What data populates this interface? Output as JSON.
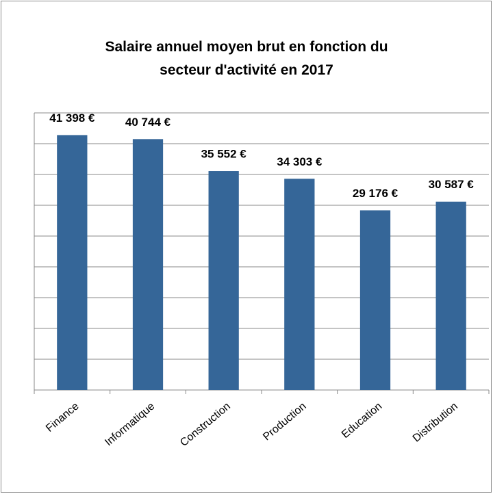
{
  "chart_data": {
    "type": "bar",
    "title": "Salaire annuel moyen brut en fonction du secteur d'activité en 2017",
    "categories": [
      "Finance",
      "Informatique",
      "Construction",
      "Production",
      "Education",
      "Distribution"
    ],
    "values": [
      41398,
      40744,
      35552,
      34303,
      29176,
      30587
    ],
    "value_labels": [
      "41 398 €",
      "40 744 €",
      "35 552 €",
      "34 303 €",
      "29 176 €",
      "30 587 €"
    ],
    "color": "#356698",
    "ylim": [
      0,
      45000
    ],
    "yticks": [
      0,
      5000,
      10000,
      15000,
      20000,
      25000,
      30000,
      35000,
      40000,
      45000
    ],
    "grid": true
  }
}
